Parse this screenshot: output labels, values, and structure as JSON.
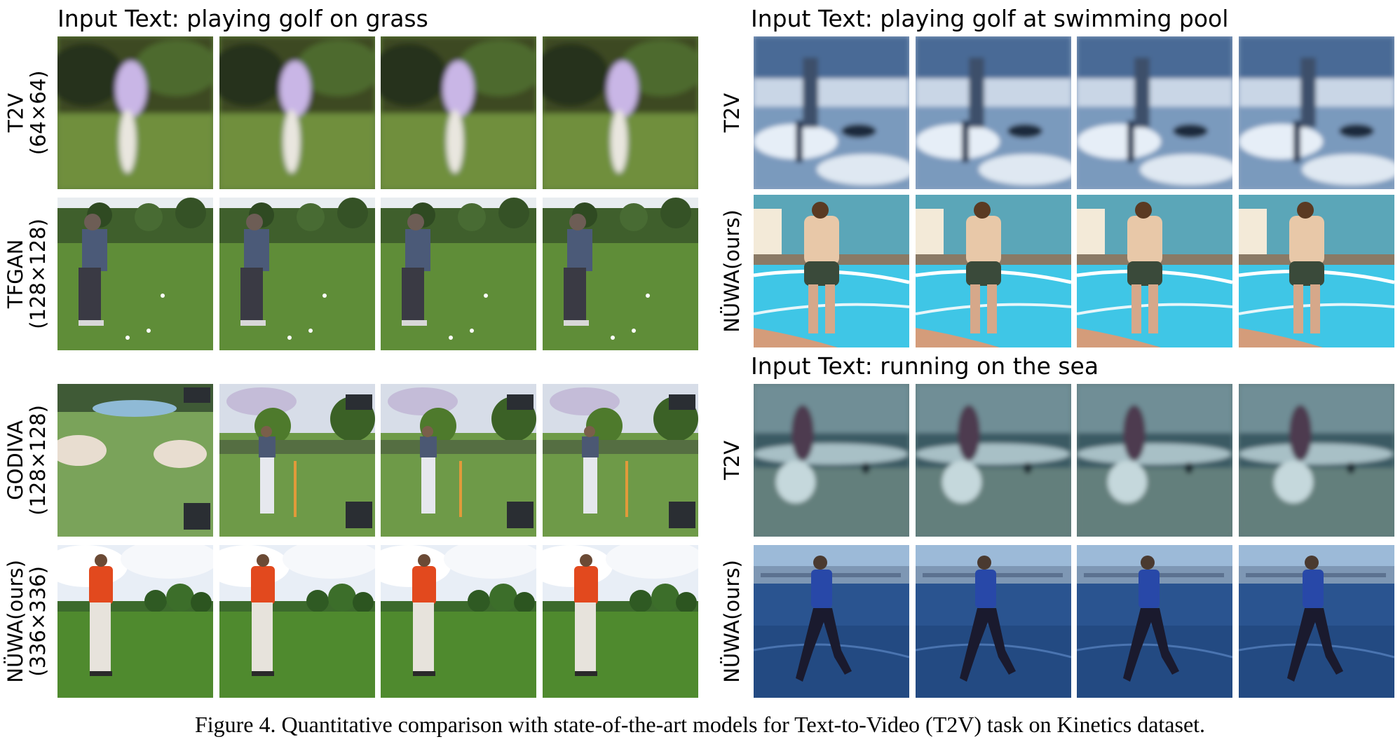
{
  "panels": {
    "golf_grass": {
      "title": "Input Text: playing golf on grass",
      "rows": [
        {
          "model": "T2V",
          "resolution": "(64×64)",
          "scene": "blurry-golf"
        },
        {
          "model": "TFGAN",
          "resolution": "(128×128)",
          "scene": "tfgan-golf"
        }
      ],
      "rows_lower": [
        {
          "model": "GODIVA",
          "resolution": "(128×128)",
          "scene": "godiva-golf"
        },
        {
          "model": "NÜWA(ours)",
          "resolution": "(336×336)",
          "scene": "nuwa-golf"
        }
      ]
    },
    "golf_pool": {
      "title": "Input Text: playing golf at swimming pool",
      "rows": [
        {
          "model": "T2V",
          "scene": "blurry-pool"
        },
        {
          "model": "NÜWA(ours)",
          "scene": "nuwa-pool"
        }
      ]
    },
    "running_sea": {
      "title": "Input Text: running on the sea",
      "rows": [
        {
          "model": "T2V",
          "scene": "blurry-sea"
        },
        {
          "model": "NÜWA(ours)",
          "scene": "nuwa-sea"
        }
      ]
    }
  },
  "frames_per_row": 4,
  "caption": "Figure 4. Quantitative comparison with state-of-the-art models for Text-to-Video (T2V) task on Kinetics dataset."
}
